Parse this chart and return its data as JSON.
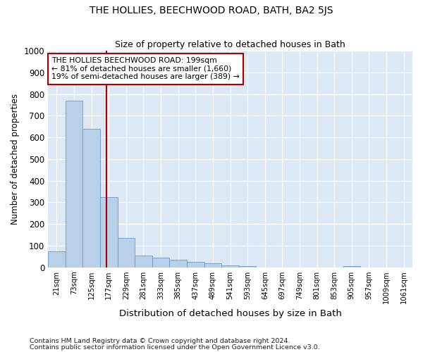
{
  "title": "THE HOLLIES, BEECHWOOD ROAD, BATH, BA2 5JS",
  "subtitle": "Size of property relative to detached houses in Bath",
  "xlabel": "Distribution of detached houses by size in Bath",
  "ylabel": "Number of detached properties",
  "footnote1": "Contains HM Land Registry data © Crown copyright and database right 2024.",
  "footnote2": "Contains public sector information licensed under the Open Government Licence v3.0.",
  "bar_color": "#b8d0e8",
  "bar_edge_color": "#6699cc",
  "background_color": "#dce9f5",
  "fig_background_color": "#ffffff",
  "grid_color": "#ffffff",
  "annotation_box_color": "#aa0000",
  "vline_color": "#aa0000",
  "categories": [
    "21sqm",
    "73sqm",
    "125sqm",
    "177sqm",
    "229sqm",
    "281sqm",
    "333sqm",
    "385sqm",
    "437sqm",
    "489sqm",
    "541sqm",
    "593sqm",
    "645sqm",
    "697sqm",
    "749sqm",
    "801sqm",
    "853sqm",
    "905sqm",
    "957sqm",
    "1009sqm",
    "1061sqm"
  ],
  "values": [
    75,
    770,
    640,
    325,
    135,
    55,
    45,
    35,
    25,
    20,
    10,
    5,
    0,
    0,
    0,
    0,
    0,
    5,
    0,
    0,
    0
  ],
  "ylim": [
    0,
    1000
  ],
  "yticks": [
    0,
    100,
    200,
    300,
    400,
    500,
    600,
    700,
    800,
    900,
    1000
  ],
  "property_label_line1": "THE HOLLIES BEECHWOOD ROAD: 199sqm",
  "property_label_line2": "← 81% of detached houses are smaller (1,660)",
  "property_label_line3": "19% of semi-detached houses are larger (389) →",
  "vline_x": 2.85
}
